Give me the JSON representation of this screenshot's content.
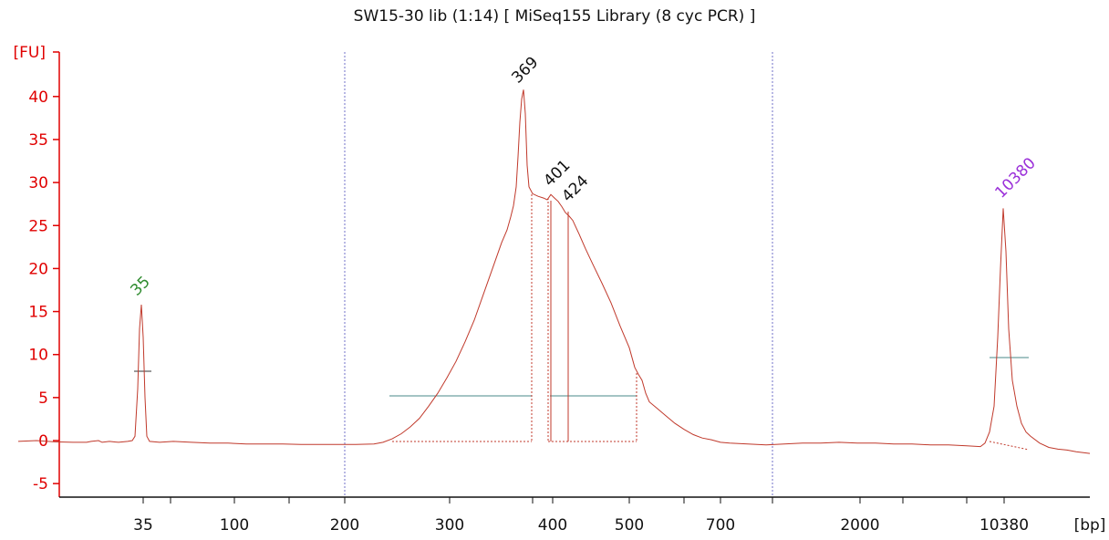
{
  "chart_data": {
    "type": "line",
    "title": "SW15-30 lib (1:14)  [ MiSeq155 Library (8 cyc PCR) ]",
    "ylabel": "[FU]",
    "xlabel": "[bp]",
    "ylim": [
      -6,
      43
    ],
    "yticks": [
      -5,
      0,
      5,
      10,
      15,
      20,
      25,
      30,
      35,
      40
    ],
    "xticks": [
      "35",
      "100",
      "200",
      "300",
      "400",
      "500",
      "700",
      "2000",
      "10380"
    ],
    "grid": false,
    "colors": {
      "trace": "#c0392b",
      "axis": "#e00000",
      "baseline": "#4a8a8a",
      "marker": "#7070c8",
      "lower_marker": "#2e8b2e",
      "upper_marker": "#9b30d9"
    },
    "peaks": [
      {
        "label": "35",
        "size_bp": 35,
        "fu": 15.8,
        "color": "#2e8b2e"
      },
      {
        "label": "369",
        "size_bp": 369,
        "fu": 41,
        "color": "#111111"
      },
      {
        "label": "401",
        "size_bp": 401,
        "fu": 28.6,
        "color": "#111111"
      },
      {
        "label": "424",
        "size_bp": 424,
        "fu": 26.2,
        "color": "#111111"
      },
      {
        "label": "10380",
        "size_bp": 10380,
        "fu": 27,
        "color": "#9b30d9"
      }
    ],
    "series": [
      {
        "values": [
          [
            20,
            -0.1
          ],
          [
            40,
            0
          ],
          [
            60,
            -0.15
          ],
          [
            80,
            -0.2
          ],
          [
            95,
            -0.2
          ],
          [
            100,
            -0.1
          ],
          [
            108,
            0
          ],
          [
            112,
            -0.2
          ],
          [
            120,
            -0.1
          ],
          [
            130,
            -0.2
          ],
          [
            140,
            -0.1
          ],
          [
            145,
            0
          ],
          [
            148,
            0.5
          ],
          [
            151,
            6
          ],
          [
            153,
            13
          ],
          [
            155,
            15.8
          ],
          [
            157,
            12
          ],
          [
            159,
            5
          ],
          [
            161,
            0.5
          ],
          [
            164,
            -0.1
          ],
          [
            175,
            -0.2
          ],
          [
            190,
            -0.1
          ],
          [
            210,
            -0.2
          ],
          [
            230,
            -0.3
          ],
          [
            250,
            -0.3
          ],
          [
            270,
            -0.4
          ],
          [
            290,
            -0.4
          ],
          [
            310,
            -0.4
          ],
          [
            330,
            -0.45
          ],
          [
            350,
            -0.45
          ],
          [
            370,
            -0.45
          ],
          [
            390,
            -0.45
          ],
          [
            410,
            -0.4
          ],
          [
            420,
            -0.2
          ],
          [
            430,
            0.2
          ],
          [
            440,
            0.8
          ],
          [
            450,
            1.6
          ],
          [
            460,
            2.6
          ],
          [
            470,
            4.0
          ],
          [
            480,
            5.5
          ],
          [
            490,
            7.3
          ],
          [
            500,
            9.2
          ],
          [
            510,
            11.5
          ],
          [
            520,
            14
          ],
          [
            530,
            17
          ],
          [
            540,
            20
          ],
          [
            550,
            23
          ],
          [
            556,
            24.5
          ],
          [
            560,
            26
          ],
          [
            563,
            27.3
          ],
          [
            566,
            29.5
          ],
          [
            568,
            33
          ],
          [
            570,
            37
          ],
          [
            572,
            39.7
          ],
          [
            574,
            40.8
          ],
          [
            576,
            38
          ],
          [
            578,
            32
          ],
          [
            580,
            29.5
          ],
          [
            584,
            28.7
          ],
          [
            590,
            28.4
          ],
          [
            596,
            28.2
          ],
          [
            600,
            28.0
          ],
          [
            604,
            28.6
          ],
          [
            608,
            28.2
          ],
          [
            612,
            27.8
          ],
          [
            616,
            27.2
          ],
          [
            620,
            26.5
          ],
          [
            624,
            26.1
          ],
          [
            628,
            25.6
          ],
          [
            635,
            24.0
          ],
          [
            642,
            22.3
          ],
          [
            650,
            20.5
          ],
          [
            660,
            18.3
          ],
          [
            670,
            16.0
          ],
          [
            680,
            13.3
          ],
          [
            690,
            10.8
          ],
          [
            696,
            8.5
          ],
          [
            700,
            7.7
          ],
          [
            704,
            7.0
          ],
          [
            708,
            5.5
          ],
          [
            712,
            4.5
          ],
          [
            720,
            3.8
          ],
          [
            730,
            2.9
          ],
          [
            740,
            2.0
          ],
          [
            750,
            1.3
          ],
          [
            760,
            0.7
          ],
          [
            770,
            0.3
          ],
          [
            780,
            0.1
          ],
          [
            790,
            -0.2
          ],
          [
            800,
            -0.3
          ],
          [
            820,
            -0.4
          ],
          [
            840,
            -0.5
          ],
          [
            860,
            -0.4
          ],
          [
            880,
            -0.3
          ],
          [
            900,
            -0.3
          ],
          [
            920,
            -0.2
          ],
          [
            940,
            -0.3
          ],
          [
            960,
            -0.3
          ],
          [
            980,
            -0.4
          ],
          [
            1000,
            -0.4
          ],
          [
            1020,
            -0.5
          ],
          [
            1040,
            -0.5
          ],
          [
            1060,
            -0.6
          ],
          [
            1075,
            -0.7
          ],
          [
            1080,
            -0.3
          ],
          [
            1085,
            1
          ],
          [
            1090,
            4
          ],
          [
            1094,
            12
          ],
          [
            1097,
            20
          ],
          [
            1100,
            27
          ],
          [
            1103,
            22
          ],
          [
            1106,
            13
          ],
          [
            1110,
            7
          ],
          [
            1115,
            4
          ],
          [
            1120,
            2
          ],
          [
            1125,
            1
          ],
          [
            1130,
            0.5
          ],
          [
            1140,
            -0.3
          ],
          [
            1150,
            -0.8
          ],
          [
            1160,
            -1.0
          ],
          [
            1170,
            -1.1
          ],
          [
            1180,
            -1.3
          ],
          [
            1195,
            -1.5
          ]
        ]
      }
    ]
  }
}
